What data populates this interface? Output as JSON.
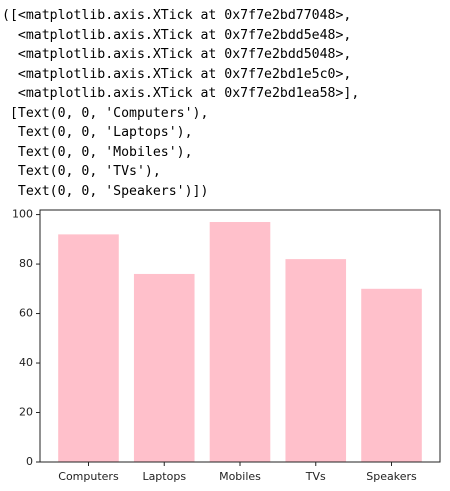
{
  "output_lines": [
    "([<matplotlib.axis.XTick at 0x7f7e2bd77048>,",
    "  <matplotlib.axis.XTick at 0x7f7e2bdd5e48>,",
    "  <matplotlib.axis.XTick at 0x7f7e2bdd5048>,",
    "  <matplotlib.axis.XTick at 0x7f7e2bd1e5c0>,",
    "  <matplotlib.axis.XTick at 0x7f7e2bd1ea58>],",
    " [Text(0, 0, 'Computers'),",
    "  Text(0, 0, 'Laptops'),",
    "  Text(0, 0, 'Mobiles'),",
    "  Text(0, 0, 'TVs'),",
    "  Text(0, 0, 'Speakers')])"
  ],
  "chart_data": {
    "type": "bar",
    "categories": [
      "Computers",
      "Laptops",
      "Mobiles",
      "TVs",
      "Speakers"
    ],
    "values": [
      92,
      76,
      97,
      82,
      70
    ],
    "color": "#ffc0cb",
    "ylim": [
      0,
      101.85
    ],
    "yticks": [
      0,
      20,
      40,
      60,
      80,
      100
    ]
  }
}
